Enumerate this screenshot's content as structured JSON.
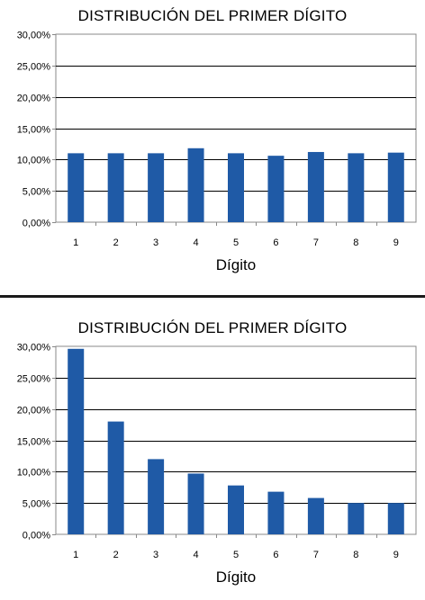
{
  "chart_data": [
    {
      "type": "bar",
      "title": "DISTRIBUCIÓN DEL PRIMER DÍGITO",
      "xlabel": "Dígito",
      "ylabel": "",
      "categories": [
        "1",
        "2",
        "3",
        "4",
        "5",
        "6",
        "7",
        "8",
        "9"
      ],
      "values": [
        0.11,
        0.11,
        0.11,
        0.118,
        0.11,
        0.106,
        0.112,
        0.11,
        0.111
      ],
      "ylim": [
        0,
        0.3
      ],
      "yticks": [
        "0,00%",
        "5,00%",
        "10,00%",
        "15,00%",
        "20,00%",
        "25,00%",
        "30,00%"
      ],
      "grid": true,
      "bar_color": "#1f5aa6"
    },
    {
      "type": "bar",
      "title": "DISTRIBUCIÓN DEL PRIMER DÍGITO",
      "xlabel": "Dígito",
      "ylabel": "",
      "categories": [
        "1",
        "2",
        "3",
        "4",
        "5",
        "6",
        "7",
        "8",
        "9"
      ],
      "values": [
        0.296,
        0.18,
        0.12,
        0.097,
        0.078,
        0.068,
        0.058,
        0.05,
        0.05
      ],
      "ylim": [
        0,
        0.3
      ],
      "yticks": [
        "0,00%",
        "5,00%",
        "10,00%",
        "15,00%",
        "20,00%",
        "25,00%",
        "30,00%"
      ],
      "grid": true,
      "bar_color": "#1f5aa6"
    }
  ]
}
